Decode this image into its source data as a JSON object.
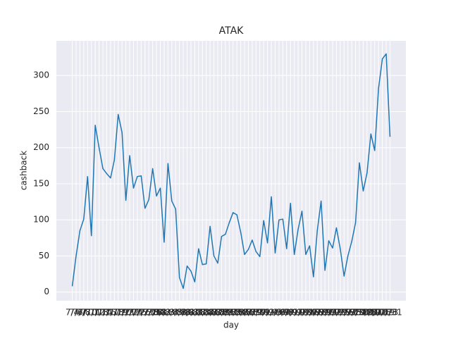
{
  "chart_data": {
    "type": "line",
    "title": "ATAK",
    "x_label": "day",
    "y_label": "cashback",
    "categories": [
      "7/4",
      "7/6",
      "7/7",
      "7/8",
      "7/10",
      "7/11",
      "7/12",
      "7/13",
      "7/14",
      "7/15",
      "7/17",
      "7/18",
      "7/19",
      "7/20",
      "7/21",
      "7/22",
      "7/24",
      "7/25",
      "7/26",
      "7/27",
      "7/28",
      "7/29",
      "7/31",
      "8/1",
      "8/2",
      "8/3",
      "8/4",
      "8/5",
      "8/7",
      "8/8",
      "8/9",
      "8/10",
      "8/11",
      "8/12",
      "8/14",
      "8/15",
      "8/16",
      "8/17",
      "8/18",
      "8/19",
      "8/21",
      "8/22",
      "8/23",
      "8/24",
      "8/25",
      "8/26",
      "8/28",
      "8/29",
      "8/30",
      "8/31",
      "9/1",
      "9/2",
      "9/4",
      "9/5",
      "9/6",
      "9/7",
      "9/8",
      "9/9",
      "9/11",
      "9/12",
      "9/13",
      "9/14",
      "9/15",
      "9/16",
      "9/18",
      "9/19",
      "9/20",
      "9/21",
      "9/22",
      "9/23",
      "9/25",
      "9/26",
      "9/27",
      "9/28",
      "9/29",
      "9/30",
      "10/2",
      "10/5",
      "10/9",
      "10/12",
      "10/16",
      "10/19",
      "10/23",
      "10/31"
    ],
    "series": [
      {
        "name": "cashback",
        "color": "#1f77b4",
        "values": [
          8,
          50,
          85,
          101,
          160,
          78,
          231,
          200,
          171,
          164,
          158,
          183,
          246,
          221,
          127,
          189,
          144,
          160,
          161,
          116,
          128,
          171,
          133,
          144,
          69,
          178,
          126,
          115,
          20,
          5,
          36,
          29,
          14,
          60,
          38,
          39,
          91,
          50,
          40,
          77,
          80,
          96,
          110,
          107,
          83,
          52,
          59,
          72,
          56,
          49,
          99,
          68,
          132,
          54,
          100,
          101,
          60,
          123,
          52,
          87,
          112,
          52,
          64,
          21,
          85,
          126,
          30,
          71,
          61,
          89,
          60,
          22,
          50,
          70,
          96,
          179,
          140,
          165,
          219,
          196,
          282,
          323,
          330,
          215
        ]
      }
    ],
    "ylim": [
      -12,
      348
    ],
    "yticks": [
      0,
      50,
      100,
      150,
      200,
      250,
      300
    ],
    "grid": true
  }
}
